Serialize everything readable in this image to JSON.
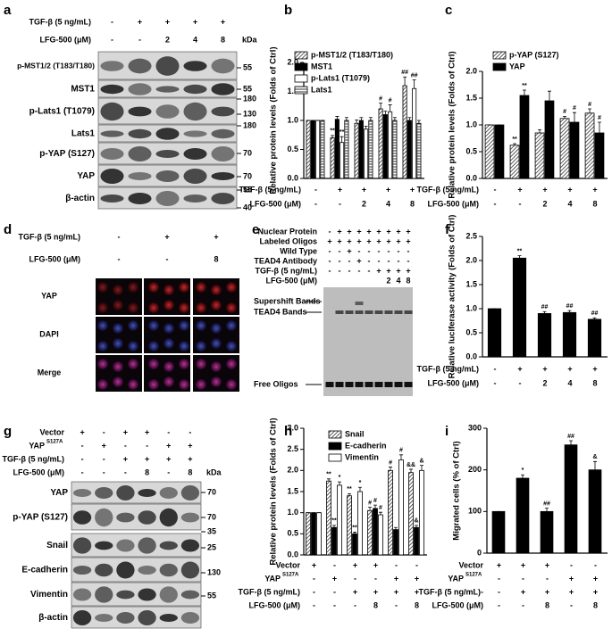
{
  "panels": [
    "a",
    "b",
    "c",
    "d",
    "e",
    "f",
    "g",
    "h",
    "i"
  ],
  "blot_a": {
    "conditions": [
      {
        "name": "TGF-β (5 ng/mL)",
        "values": [
          "-",
          "+",
          "+",
          "+",
          "+"
        ]
      },
      {
        "name": "LFG-500 (μM)",
        "values": [
          "-",
          "-",
          "2",
          "4",
          "8"
        ]
      }
    ],
    "unit": "kDa",
    "rows": [
      "p-MST1/2 (T183/T180)",
      "MST1",
      "p-Lats1 (T1079)",
      "Lats1",
      "p-YAP (S127)",
      "YAP",
      "β-actin"
    ],
    "markers": [
      "55",
      "55",
      "180",
      "130",
      "180",
      "70",
      "70",
      "55",
      "40"
    ]
  },
  "d": {
    "conditions": [
      {
        "name": "TGF-β (5 ng/mL)",
        "values": [
          "-",
          "+",
          "+"
        ]
      },
      {
        "name": "LFG-500 (μM)",
        "values": [
          "-",
          "-",
          "8"
        ]
      }
    ],
    "rows": [
      "YAP",
      "DAPI",
      "Merge"
    ]
  },
  "e": {
    "conditions": [
      {
        "name": "Nuclear Protein",
        "values": [
          "-",
          "+",
          "+",
          "+",
          "+",
          "+",
          "+",
          "+",
          "+"
        ]
      },
      {
        "name": "Labeled Oligos",
        "values": [
          "+",
          "+",
          "+",
          "+",
          "+",
          "+",
          "+",
          "+",
          "+"
        ]
      },
      {
        "name": "Wild Type",
        "values": [
          "-",
          "-",
          "+",
          "-",
          "-",
          "-",
          "-",
          "-",
          "-"
        ]
      },
      {
        "name": "TEAD4 Antibody",
        "values": [
          "-",
          "-",
          "-",
          "+",
          "-",
          "-",
          "-",
          "-",
          "-"
        ]
      },
      {
        "name": "TGF-β (5 ng/mL)",
        "values": [
          "-",
          "-",
          "-",
          "-",
          "-",
          "+",
          "+",
          "+",
          "+"
        ]
      },
      {
        "name": "LFG-500 (μM)",
        "values": [
          null,
          null,
          null,
          null,
          null,
          null,
          "2",
          "4",
          "8"
        ]
      }
    ],
    "bands": [
      "Supershift Bands",
      "TEAD4 Bands",
      "Free Oligos"
    ]
  },
  "blot_g": {
    "conditions": [
      {
        "name": "Vector",
        "values": [
          "+",
          "-",
          "+",
          "+",
          "-",
          "-"
        ]
      },
      {
        "name": "YAP",
        "superscript": "S127A",
        "values": [
          "-",
          "+",
          "-",
          "-",
          "+",
          "+"
        ]
      },
      {
        "name": "TGF-β (5 ng/mL)",
        "values": [
          "-",
          "-",
          "+",
          "+",
          "+",
          "+"
        ]
      },
      {
        "name": "LFG-500 (μM)",
        "values": [
          "-",
          "-",
          "-",
          "8",
          "-",
          "8"
        ]
      }
    ],
    "unit": "kDa",
    "rows": [
      "YAP",
      "p-YAP (S127)",
      "Snail",
      "E-cadherin",
      "Vimentin",
      "β-actin"
    ],
    "markers": [
      "70",
      "70",
      "35",
      "25",
      "130",
      "55"
    ]
  },
  "chart_data": [
    {
      "type": "bar",
      "y_label": "Relative protein levels (Folds of Ctrl)",
      "ylim": [
        0,
        2
      ],
      "yticks": [
        {
          "value": 0,
          "label": "0.0"
        },
        {
          "value": 0.5,
          "label": "0.5"
        },
        {
          "value": 1,
          "label": "1.0"
        },
        {
          "value": 1.5,
          "label": "1.5"
        },
        {
          "value": 2,
          "label": "2.0"
        }
      ],
      "conditions": [
        {
          "name": "TGF-β (5 ng/mL)",
          "values": [
            "-",
            "+",
            "+",
            "+",
            "+"
          ]
        },
        {
          "name": "LFG-500 (μM)",
          "values": [
            "-",
            "-",
            "2",
            "4",
            "8"
          ]
        }
      ],
      "series": [
        {
          "name": "p-MST1/2 (T183/T180)",
          "color": "#555",
          "pattern": "diagonal",
          "values": [
            1,
            0.7,
            0.95,
            1.2,
            1.6
          ],
          "errors": [
            0,
            0.04,
            0.06,
            0.1,
            0.15
          ],
          "sig": [
            null,
            "**",
            null,
            "#",
            "##"
          ]
        },
        {
          "name": "MST1",
          "color": "#000",
          "pattern": "solid",
          "values": [
            1,
            1.02,
            1,
            1.1,
            1
          ],
          "errors": [
            0,
            0.05,
            0.05,
            0.06,
            0.05
          ],
          "sig": [
            null,
            null,
            null,
            null,
            null
          ]
        },
        {
          "name": "p-Lats1 (T1079)",
          "color": "#000",
          "pattern": "none",
          "values": [
            1,
            0.62,
            0.85,
            1.15,
            1.55
          ],
          "errors": [
            0,
            0.1,
            0.05,
            0.12,
            0.15
          ],
          "sig": [
            null,
            "**",
            null,
            "#",
            "##"
          ]
        },
        {
          "name": "Lats1",
          "color": "#555",
          "pattern": "horizontal",
          "values": [
            1,
            1,
            1,
            1,
            0.95
          ],
          "errors": [
            0,
            0.05,
            0.05,
            0.05,
            0.05
          ],
          "sig": [
            null,
            null,
            null,
            null,
            null
          ]
        }
      ]
    },
    {
      "type": "bar",
      "y_label": "Relative protein levels (Folds of Ctrl)",
      "ylim": [
        0,
        2
      ],
      "yticks": [
        {
          "value": 0,
          "label": "0.0"
        },
        {
          "value": 0.5,
          "label": "0.5"
        },
        {
          "value": 1,
          "label": "1.0"
        },
        {
          "value": 1.5,
          "label": "1.5"
        },
        {
          "value": 2,
          "label": "2.0"
        }
      ],
      "conditions": [
        {
          "name": "TGF-β (5 ng/mL)",
          "values": [
            "-",
            "+",
            "+",
            "+",
            "+"
          ]
        },
        {
          "name": "LFG-500 (μM)",
          "values": [
            "-",
            "-",
            "2",
            "4",
            "8"
          ]
        }
      ],
      "series": [
        {
          "name": "p-YAP (S127)",
          "color": "#555",
          "pattern": "diagonal",
          "values": [
            1,
            0.62,
            0.85,
            1.12,
            1.22
          ],
          "errors": [
            0,
            0.03,
            0.06,
            0.04,
            0.08
          ],
          "sig": [
            null,
            "**",
            null,
            "#",
            "#"
          ]
        },
        {
          "name": "YAP",
          "color": "#000",
          "pattern": "solid",
          "values": [
            1,
            1.55,
            1.45,
            1.05,
            0.85
          ],
          "errors": [
            0,
            0.1,
            0.18,
            0.18,
            0.2
          ],
          "sig": [
            null,
            "**",
            null,
            "#",
            "#"
          ]
        }
      ]
    },
    {
      "type": "bar",
      "y_label": "Relative luciferase activity (Folds of Ctrl)",
      "ylim": [
        0,
        2.5
      ],
      "yticks": [
        {
          "value": 0,
          "label": "0.0"
        },
        {
          "value": 0.5,
          "label": "0.5"
        },
        {
          "value": 1,
          "label": "1.0"
        },
        {
          "value": 1.5,
          "label": "1.5"
        },
        {
          "value": 2,
          "label": "2.0"
        },
        {
          "value": 2.5,
          "label": "2.5"
        }
      ],
      "conditions": [
        {
          "name": "TGF-β (5 ng/mL)",
          "values": [
            "-",
            "+",
            "+",
            "+",
            "+"
          ]
        },
        {
          "name": "LFG-500 (μM)",
          "values": [
            "-",
            "-",
            "2",
            "4",
            "8"
          ]
        }
      ],
      "series": [
        {
          "name": null,
          "color": "#000",
          "pattern": "solid",
          "values": [
            1,
            2.05,
            0.9,
            0.92,
            0.78
          ],
          "errors": [
            0,
            0.05,
            0.04,
            0.04,
            0.03
          ],
          "sig": [
            null,
            "**",
            "##",
            "##",
            "##"
          ]
        }
      ]
    },
    {
      "type": "bar",
      "y_label": "Relative protein levels (Folds of Ctrl)",
      "ylim": [
        0,
        3
      ],
      "yticks": [
        {
          "value": 0,
          "label": "0.0"
        },
        {
          "value": 0.5,
          "label": "0.5"
        },
        {
          "value": 1,
          "label": "1.0"
        },
        {
          "value": 1.5,
          "label": "1.5"
        },
        {
          "value": 2,
          "label": "2.0"
        },
        {
          "value": 2.5,
          "label": "2.5"
        },
        {
          "value": 3,
          "label": "3.0"
        }
      ],
      "conditions": [
        {
          "name": "Vector",
          "values": [
            "+",
            "-",
            "+",
            "+",
            "-",
            "-"
          ]
        },
        {
          "name": "YAP",
          "superscript": "S127A",
          "values": [
            "-",
            "+",
            "-",
            "-",
            "+",
            "+"
          ]
        },
        {
          "name": "TGF-β (5 ng/mL)",
          "values": [
            "-",
            "-",
            "+",
            "+",
            "+",
            "+"
          ]
        },
        {
          "name": "LFG-500 (μM)",
          "values": [
            "-",
            "-",
            "-",
            "8",
            "-",
            "8"
          ]
        }
      ],
      "series": [
        {
          "name": "Snail",
          "color": "#555",
          "pattern": "diagonal",
          "values": [
            1,
            1.75,
            1.4,
            1.05,
            2,
            1.95
          ],
          "errors": [
            0,
            0.05,
            0.05,
            0.08,
            0.08,
            0.08
          ],
          "sig": [
            null,
            "**",
            "**",
            "#",
            "#",
            "&&"
          ]
        },
        {
          "name": "E-cadherin",
          "color": "#000",
          "pattern": "solid",
          "values": [
            1,
            0.65,
            0.5,
            1.1,
            0.6,
            0.65
          ],
          "errors": [
            0,
            0.05,
            0.04,
            0.08,
            0.05,
            0.05
          ],
          "sig": [
            null,
            "**",
            "**",
            "#",
            null,
            "&"
          ]
        },
        {
          "name": "Vimentin",
          "color": "#000",
          "pattern": "none",
          "values": [
            1,
            1.65,
            1.5,
            0.95,
            2.25,
            2
          ],
          "errors": [
            0,
            0.08,
            0.1,
            0.06,
            0.12,
            0.12
          ],
          "sig": [
            null,
            "*",
            "*",
            "#",
            "#",
            "&"
          ]
        }
      ]
    },
    {
      "type": "bar",
      "y_label": "Migrated cells (% of Ctrl)",
      "ylim": [
        0,
        300
      ],
      "yticks": [
        0,
        100,
        200,
        300
      ],
      "conditions": [
        {
          "name": "Vector",
          "values": [
            "+",
            "+",
            "+",
            "-",
            "-"
          ]
        },
        {
          "name": "YAP",
          "superscript": "S127A",
          "values": [
            "-",
            "-",
            "-",
            "+",
            "+"
          ]
        },
        {
          "name": "TGF-β (5 ng/mL)-",
          "values": [
            "-",
            "+",
            "+",
            "+",
            "+"
          ]
        },
        {
          "name": "LFG-500 (μM)",
          "values": [
            "-",
            "-",
            "8",
            "-",
            "8"
          ]
        }
      ],
      "series": [
        {
          "name": null,
          "color": "#000",
          "pattern": "solid",
          "values": [
            100,
            180,
            100,
            260,
            200
          ],
          "errors": [
            0,
            8,
            8,
            10,
            20
          ],
          "sig": [
            null,
            "*",
            "##",
            "##",
            "&"
          ]
        }
      ]
    }
  ]
}
